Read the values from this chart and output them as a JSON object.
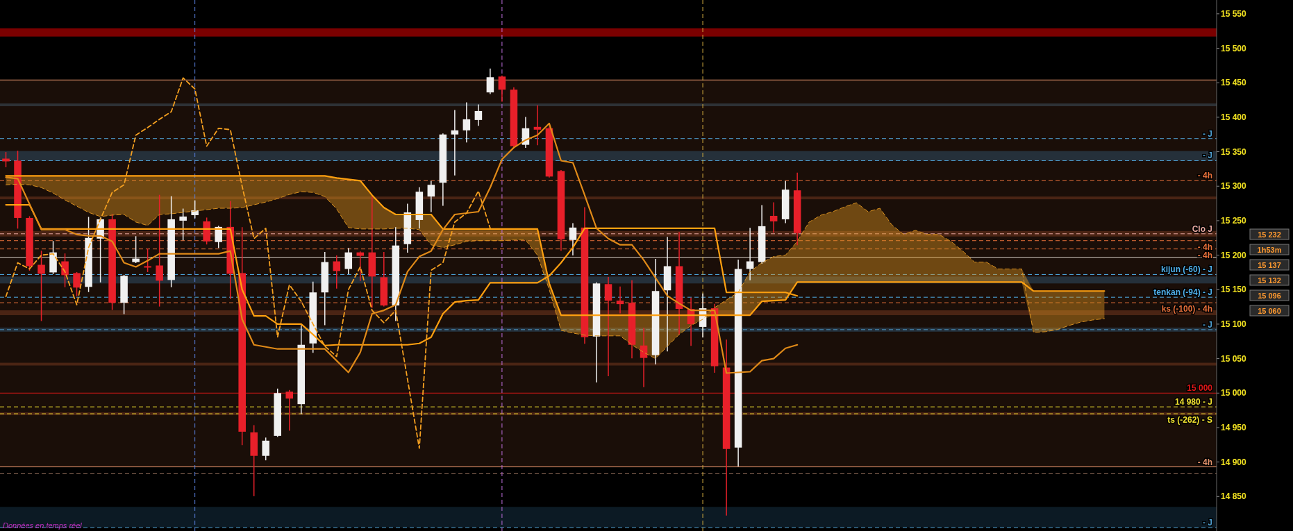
{
  "chart_data": {
    "type": "candlestick",
    "categories": [
      null,
      null,
      null,
      null,
      null,
      null,
      null,
      null,
      null,
      null,
      null,
      null,
      null,
      null,
      null,
      null,
      null,
      null,
      null,
      null,
      null,
      null,
      null,
      null,
      null,
      null,
      null,
      null,
      null,
      null,
      null,
      null,
      null,
      null,
      null,
      null,
      null,
      null,
      null,
      null,
      null,
      null,
      null,
      null,
      null,
      null,
      null,
      null,
      null,
      null,
      null,
      null,
      null,
      null,
      null,
      null,
      null,
      null,
      null,
      null,
      null,
      null,
      null,
      null,
      null,
      null,
      null,
      null,
      null,
      null,
      null,
      null,
      null,
      null,
      null,
      null,
      null,
      null,
      null,
      null,
      null,
      null,
      null,
      null,
      null,
      null,
      null,
      null,
      null,
      null,
      null,
      null,
      null,
      null,
      null,
      null,
      null,
      null,
      null,
      null,
      null,
      null,
      null
    ],
    "ylim": [
      14800,
      15570
    ],
    "yticks": [
      {
        "value": 14850,
        "label": "14 850"
      },
      {
        "value": 14900,
        "label": "14 900"
      },
      {
        "value": 14950,
        "label": "14 950"
      },
      {
        "value": 15000,
        "label": "15 000"
      },
      {
        "value": 15050,
        "label": "15 050"
      },
      {
        "value": 15100,
        "label": "15 100"
      },
      {
        "value": 15150,
        "label": "15 150"
      },
      {
        "value": 15200,
        "label": "15 200"
      },
      {
        "value": 15250,
        "label": "15 250"
      },
      {
        "value": 15300,
        "label": "15 300"
      },
      {
        "value": 15350,
        "label": "15 350"
      },
      {
        "value": 15400,
        "label": "15 400"
      },
      {
        "value": 15450,
        "label": "15 450"
      },
      {
        "value": 15500,
        "label": "15 500"
      },
      {
        "value": 15550,
        "label": "15 550"
      }
    ],
    "tick_labels": "y",
    "series": [
      {
        "ohlc": [
          [
            15340,
            15349,
            15328,
            15336
          ],
          [
            15337,
            15351,
            15239,
            15254
          ],
          [
            15254,
            15256,
            15178,
            15184
          ],
          [
            15186,
            15206,
            15105,
            15173
          ],
          [
            15175,
            15220,
            15173,
            15204
          ],
          [
            15191,
            15202,
            15154,
            15171
          ],
          [
            15174,
            15175,
            15141,
            15153
          ],
          [
            15154,
            15255,
            15147,
            15225
          ],
          [
            15224,
            15254,
            15161,
            15252
          ],
          [
            15252,
            15259,
            15121,
            15131
          ],
          [
            15131,
            15171,
            15115,
            15170
          ],
          [
            15190,
            15227,
            15189,
            15195
          ],
          [
            15184,
            15209,
            15176,
            15182
          ],
          [
            15185,
            15287,
            15126,
            15163
          ],
          [
            15164,
            15285,
            15154,
            15252
          ],
          [
            15250,
            15267,
            15222,
            15256
          ],
          [
            15258,
            15279,
            15254,
            15265
          ],
          [
            15249,
            15254,
            15216,
            15220
          ],
          [
            15219,
            15242,
            15211,
            15241
          ],
          [
            15241,
            15278,
            15137,
            15173
          ],
          [
            15174,
            15240,
            14925,
            14944
          ],
          [
            14943,
            14953,
            14851,
            14909
          ],
          [
            14909,
            14935,
            14903,
            14931
          ],
          [
            14938,
            15006,
            14937,
            15000
          ],
          [
            15002,
            15004,
            14946,
            14992
          ],
          [
            14984,
            15098,
            14970,
            15070
          ],
          [
            15072,
            15161,
            15059,
            15146
          ],
          [
            15146,
            15204,
            15099,
            15190
          ],
          [
            15191,
            15199,
            15152,
            15177
          ],
          [
            15180,
            15210,
            15173,
            15204
          ],
          [
            15204,
            15205,
            15163,
            15199
          ],
          [
            15204,
            15285,
            15124,
            15169
          ],
          [
            15168,
            15204,
            15126,
            15127
          ],
          [
            15127,
            15240,
            15105,
            15214
          ],
          [
            15216,
            15274,
            15204,
            15262
          ],
          [
            15251,
            15298,
            15239,
            15292
          ],
          [
            15285,
            15307,
            15263,
            15302
          ],
          [
            15305,
            15376,
            15272,
            15375
          ],
          [
            15375,
            15410,
            15316,
            15381
          ],
          [
            15381,
            15421,
            15364,
            15397
          ],
          [
            15396,
            15418,
            15388,
            15409
          ],
          [
            15436,
            15470,
            15434,
            15458
          ],
          [
            15459,
            15460,
            15423,
            15440
          ],
          [
            15440,
            15443,
            15357,
            15358
          ],
          [
            15360,
            15400,
            15356,
            15384
          ],
          [
            15386,
            15417,
            15360,
            15382
          ],
          [
            15384,
            15386,
            15313,
            15314
          ],
          [
            15322,
            15323,
            15207,
            15223
          ],
          [
            15222,
            15246,
            15200,
            15240
          ],
          [
            15240,
            15269,
            15072,
            15081
          ],
          [
            15082,
            15160,
            15016,
            15159
          ],
          [
            15158,
            15168,
            15025,
            15134
          ],
          [
            15134,
            15154,
            15116,
            15129
          ],
          [
            15131,
            15163,
            15051,
            15070
          ],
          [
            15069,
            15094,
            15009,
            15051
          ],
          [
            15055,
            15194,
            15042,
            15148
          ],
          [
            15149,
            15226,
            15061,
            15184
          ],
          [
            15184,
            15233,
            15085,
            15122
          ],
          [
            15122,
            15138,
            15069,
            15100
          ],
          [
            15096,
            15144,
            15081,
            15123
          ],
          [
            15123,
            15129,
            15030,
            15039
          ],
          [
            15037,
            15077,
            14823,
            14919
          ],
          [
            14921,
            15193,
            14894,
            15180
          ],
          [
            15180,
            15239,
            15164,
            15191
          ],
          [
            15190,
            15272,
            15188,
            15242
          ],
          [
            15257,
            15276,
            15233,
            15249
          ],
          [
            15252,
            15307,
            15247,
            15295
          ],
          [
            15294,
            15319,
            15215,
            15232
          ],
          null,
          null,
          null,
          null,
          null,
          null,
          null,
          null,
          null,
          null,
          null,
          null,
          null,
          null,
          null,
          null,
          null,
          null,
          null,
          null,
          null,
          null,
          null,
          null,
          null,
          null,
          null,
          null,
          null,
          null,
          null,
          null,
          null,
          null,
          null
        ],
        "colors": [
          "#e8202a",
          "#e8202a",
          "#e8202a",
          "#e8202a",
          "#f0f0f0",
          "#e8202a",
          "#e8202a",
          "#f0f0f0",
          "#f0f0f0",
          "#e8202a",
          "#f0f0f0",
          "#f0f0f0",
          "#e8202a",
          "#e8202a",
          "#f0f0f0",
          "#f0f0f0",
          "#f0f0f0",
          "#e8202a",
          "#f0f0f0",
          "#e8202a",
          "#e8202a",
          "#e8202a",
          "#f0f0f0",
          "#f0f0f0",
          "#e8202a",
          "#f0f0f0",
          "#f0f0f0",
          "#f0f0f0",
          "#e8202a",
          "#f0f0f0",
          "#e8202a",
          "#e8202a",
          "#e8202a",
          "#f0f0f0",
          "#f0f0f0",
          "#f0f0f0",
          "#f0f0f0",
          "#f0f0f0",
          "#f0f0f0",
          "#f0f0f0",
          "#f0f0f0",
          "#f0f0f0",
          "#e8202a",
          "#e8202a",
          "#f0f0f0",
          "#e8202a",
          "#e8202a",
          "#e8202a",
          "#f0f0f0",
          "#e8202a",
          "#f0f0f0",
          "#e8202a",
          "#e8202a",
          "#e8202a",
          "#e8202a",
          "#f0f0f0",
          "#f0f0f0",
          "#e8202a",
          "#e8202a",
          "#f0f0f0",
          "#e8202a",
          "#e8202a",
          "#f0f0f0",
          "#f0f0f0",
          "#f0f0f0",
          "#e8202a",
          "#f0f0f0",
          "#e8202a",
          null,
          null,
          null,
          null,
          null,
          null,
          null,
          null,
          null,
          null,
          null,
          null,
          null,
          null,
          null,
          null,
          null,
          null,
          null,
          null,
          null,
          null,
          null,
          null,
          null,
          null,
          null,
          null,
          null,
          null,
          null,
          null,
          null,
          null,
          null
        ]
      },
      {
        "type": "line",
        "color": "#d89020",
        "line_style": "dashed",
        "values": [
          15302,
          15303,
          15302,
          15298,
          15290,
          15280,
          15271,
          15262,
          15256,
          15258,
          15259,
          15248,
          15243,
          15259,
          15260,
          15262,
          15264,
          15266,
          15268,
          15268,
          15269,
          15273,
          15277,
          15282,
          15288,
          15292,
          15291,
          15285,
          15267,
          15240,
          15238,
          15238,
          15238,
          15239,
          15239,
          15237,
          15215,
          15211,
          15215,
          15220,
          15221,
          15221,
          15221,
          15222,
          15222,
          15200,
          15150,
          15091,
          15087,
          15084,
          15083,
          15083,
          15083,
          15070,
          15059,
          15050,
          15068,
          15085,
          15098,
          15107,
          15124,
          15135,
          15146,
          15176,
          15189,
          15198,
          15200,
          15220,
          15248,
          15258,
          15263,
          15270,
          15276,
          15263,
          15268,
          15244,
          15230,
          15236,
          15230,
          15230,
          15220,
          15206,
          15190,
          15190,
          15180,
          15180,
          15180,
          15088,
          15089,
          15092,
          15098,
          15103,
          15106,
          15108,
          null,
          null,
          null,
          null,
          null,
          null,
          null,
          null,
          null
        ],
        "lower": [
          15302,
          15303,
          15302,
          15298,
          15290,
          15280,
          15271,
          15262,
          15256,
          15258,
          15259,
          15248,
          15243,
          15259,
          15260,
          15262,
          15264,
          15266,
          15268,
          15268,
          15269,
          15273,
          15277,
          15282,
          15288,
          15292,
          15291,
          15285,
          15267,
          15240,
          15238,
          15238,
          15238,
          15239,
          15239,
          15237,
          15215,
          15211,
          15215,
          15220,
          15221,
          15221,
          15221,
          15222,
          15222,
          15200,
          15150,
          15091,
          15087,
          15084,
          15083,
          15083,
          15083,
          15070,
          15059,
          15050,
          15068,
          15085,
          15098,
          15107,
          15113,
          15113,
          15113,
          15113,
          15133,
          15134,
          15135,
          15161,
          15161,
          15161,
          15161,
          15161,
          15161,
          15161,
          15161,
          15161,
          15161,
          15161,
          15161,
          15161,
          15161,
          15161,
          15161,
          15161,
          15161,
          15161,
          15161,
          15088,
          15089,
          15092,
          15098,
          15103,
          15106,
          15108,
          null,
          null,
          null,
          null,
          null,
          null,
          null,
          null,
          null
        ],
        "upper": [
          15315,
          15315,
          15315,
          15315,
          15315,
          15315,
          15315,
          15315,
          15315,
          15315,
          15315,
          15315,
          15315,
          15315,
          15315,
          15315,
          15315,
          15315,
          15315,
          15315,
          15315,
          15315,
          15315,
          15315,
          15315,
          15315,
          15315,
          15315,
          15312,
          15310,
          15308,
          15287,
          15269,
          15259,
          15259,
          15259,
          15259,
          15238,
          15238,
          15238,
          15238,
          15238,
          15238,
          15238,
          15238,
          15238,
          15159,
          15113,
          15113,
          15113,
          15113,
          15113,
          15113,
          15113,
          15113,
          15113,
          15113,
          15113,
          15113,
          15113,
          15124,
          15135,
          15146,
          15176,
          15189,
          15198,
          15200,
          15220,
          15248,
          15258,
          15263,
          15270,
          15276,
          15263,
          15268,
          15244,
          15230,
          15236,
          15230,
          15230,
          15220,
          15206,
          15190,
          15190,
          15180,
          15180,
          15180,
          15148,
          15148,
          15148,
          15148,
          15148,
          15148,
          15148,
          null,
          null,
          null,
          null,
          null,
          null,
          null,
          null,
          null
        ]
      },
      {
        "type": "line",
        "color": "#ffa010",
        "values": [
          15315,
          15315,
          15315,
          15315,
          15315,
          15315,
          15315,
          15315,
          15315,
          15315,
          15315,
          15315,
          15315,
          15315,
          15315,
          15315,
          15315,
          15315,
          15315,
          15315,
          15315,
          15315,
          15315,
          15315,
          15315,
          15315,
          15315,
          15315,
          15312,
          15310,
          15308,
          15287,
          15269,
          15259,
          15259,
          15259,
          15259,
          15238,
          15238,
          15238,
          15238,
          15238,
          15238,
          15238,
          15238,
          15238,
          15159,
          15113,
          15113,
          15113,
          15113,
          15113,
          15113,
          15113,
          15113,
          15113,
          15113,
          15113,
          15113,
          15113,
          15113,
          15113,
          15113,
          15113,
          15133,
          15134,
          15135,
          15161,
          15161,
          15161,
          15161,
          15161,
          15161,
          15161,
          15161,
          15161,
          15161,
          15161,
          15161,
          15161,
          15161,
          15161,
          15161,
          15161,
          15161,
          15161,
          15161,
          15148,
          15148,
          15148,
          15148,
          15148,
          15148,
          15148,
          null,
          null,
          null,
          null,
          null,
          null,
          null,
          null,
          null
        ]
      },
      {
        "type": "line",
        "color": "#ffa010",
        "values": [
          15273,
          15273,
          15273,
          15238,
          15238,
          15238,
          15238,
          15238,
          15238,
          15238,
          15238,
          15238,
          15238,
          15238,
          15238,
          15238,
          15238,
          15238,
          15238,
          15238,
          15150,
          15112,
          15112,
          15100,
          15100,
          15100,
          15085,
          15069,
          15070,
          15070,
          15070,
          15070,
          15070,
          15070,
          15070,
          15072,
          15081,
          15115,
          15132,
          15134,
          15135,
          15160,
          15160,
          15160,
          15160,
          15160,
          15170,
          15189,
          15211,
          15239,
          15239,
          15239,
          15239,
          15239,
          15239,
          15239,
          15239,
          15239,
          15239,
          15239,
          15239,
          15146,
          15146,
          15146,
          15146,
          15146,
          15146,
          15141,
          null,
          null,
          null,
          null,
          null,
          null,
          null,
          null,
          null,
          null,
          null,
          null,
          null,
          null,
          null,
          null,
          null,
          null,
          null,
          null,
          null,
          null,
          null,
          null,
          null,
          null,
          null,
          null,
          null,
          null,
          null,
          null,
          null,
          null,
          null
        ]
      },
      {
        "type": "line",
        "color": "#e08a18",
        "values": [
          15313,
          15311,
          15274,
          15237,
          15237,
          15237,
          15230,
          15228,
          15228,
          15220,
          15189,
          15183,
          15192,
          15202,
          15202,
          15202,
          15202,
          15202,
          15202,
          15206,
          15107,
          15070,
          15067,
          15064,
          15064,
          15064,
          15064,
          15064,
          15047,
          15030,
          15059,
          15115,
          15120,
          15128,
          15176,
          15198,
          15206,
          15237,
          15259,
          15261,
          15263,
          15298,
          15339,
          15356,
          15367,
          15374,
          15391,
          15337,
          15334,
          15287,
          15239,
          15224,
          15215,
          15215,
          15193,
          15167,
          15141,
          15130,
          15120,
          15120,
          15120,
          15029,
          15030,
          15031,
          15047,
          15050,
          15065,
          15070,
          null,
          null,
          null,
          null,
          null,
          null,
          null,
          null,
          null,
          null,
          null,
          null,
          null,
          null,
          null,
          null,
          null,
          null,
          null,
          null,
          null,
          null,
          null,
          null,
          null,
          null,
          null,
          null,
          null,
          null,
          null,
          null,
          null,
          null,
          null
        ]
      },
      {
        "type": "line",
        "color": "#f5a020",
        "line_style": "dashed",
        "values": [
          15140,
          15189,
          15180,
          15200,
          15202,
          15176,
          15128,
          15211,
          15252,
          15291,
          15302,
          15374,
          15385,
          15397,
          15408,
          15457,
          15441,
          15358,
          15384,
          15382,
          15300,
          15224,
          15239,
          15081,
          15157,
          15133,
          15100,
          15068,
          15053,
          15150,
          15183,
          15120,
          15102,
          15120,
          15020,
          14920,
          15178,
          15189,
          15248,
          15261,
          15293,
          15239,
          null,
          null,
          null,
          null,
          null,
          null,
          null,
          null,
          null,
          null,
          null,
          null,
          null,
          null,
          null,
          null,
          null,
          null,
          null,
          null,
          null,
          null,
          null,
          null,
          null,
          null,
          null,
          null,
          null,
          null,
          null,
          null,
          null,
          null,
          null,
          null,
          null,
          null,
          null,
          null,
          null,
          null,
          null,
          null,
          null,
          null,
          null,
          null,
          null,
          null,
          null,
          null,
          null,
          null,
          null,
          null,
          null,
          null,
          null,
          null,
          null
        ]
      }
    ],
    "bands": [
      {
        "axis": "y",
        "from": 14893,
        "to": 15454,
        "color": "#1a0e08"
      },
      {
        "axis": "y",
        "from": 15517,
        "to": 15529,
        "color": "#7a0000"
      },
      {
        "axis": "y",
        "from": 15416,
        "to": 15420,
        "color": "#2e3236"
      },
      {
        "axis": "y",
        "from": 15337,
        "to": 15351,
        "color": "#25303a"
      },
      {
        "axis": "y",
        "from": 15281,
        "to": 15285,
        "color": "#4a2414"
      },
      {
        "axis": "y",
        "from": 15227,
        "to": 15235,
        "color": "#4a2414"
      },
      {
        "axis": "y",
        "from": 15159,
        "to": 15169,
        "color": "#25303a"
      },
      {
        "axis": "y",
        "from": 15113,
        "to": 15120,
        "color": "#4a2414"
      },
      {
        "axis": "y",
        "from": 15089,
        "to": 15095,
        "color": "#25303a"
      },
      {
        "axis": "y",
        "from": 15040,
        "to": 15044,
        "color": "#4a2414"
      },
      {
        "axis": "y",
        "from": 14968,
        "to": 14972,
        "color": "#4a2414"
      },
      {
        "axis": "y",
        "from": 14805,
        "to": 14835,
        "color": "#0c1a24"
      }
    ],
    "ref_lines": [
      {
        "axis": "y",
        "value": 15454,
        "color": "#e0906a",
        "line_style": "solid"
      },
      {
        "axis": "y",
        "value": 15369,
        "label": "- J",
        "color": "#4f9fd0",
        "line_style": "dashed"
      },
      {
        "axis": "y",
        "value": 15337,
        "label": "- J",
        "color": "#4f9fd0",
        "line_style": "dashed"
      },
      {
        "axis": "y",
        "value": 15308,
        "label": "- 4h",
        "color": "#e8703a",
        "line_style": "dashed"
      },
      {
        "axis": "y",
        "value": 15231,
        "label": "Clo J",
        "color": "#e8a8a0",
        "line_style": "dashed"
      },
      {
        "axis": "y",
        "value": 15221,
        "label": "- 4h",
        "color": "#e8703a",
        "line_style": "dashed"
      },
      {
        "axis": "y",
        "value": 15209,
        "label": "- 4h",
        "color": "#e8703a",
        "line_style": "dashed"
      },
      {
        "axis": "y",
        "value": 15197,
        "color": "#d8d0c8",
        "line_style": "solid"
      },
      {
        "axis": "y",
        "value": 15172,
        "label": "kijun (-60) - J",
        "color": "#4faee8",
        "line_style": "dashed"
      },
      {
        "axis": "y",
        "value": 15139,
        "label": "tenkan (-94) - J",
        "color": "#4faee8",
        "line_style": "dashed"
      },
      {
        "axis": "y",
        "value": 15131,
        "label": "ks (-100) - 4h",
        "color": "#e8703a",
        "line_style": "dashed"
      },
      {
        "axis": "y",
        "value": 15092,
        "label": "- J",
        "color": "#4f9fd0",
        "line_style": "dashed"
      },
      {
        "axis": "y",
        "value": 15000,
        "label": "15 000",
        "color": "#e01818",
        "line_style": "solid"
      },
      {
        "axis": "y",
        "value": 14980,
        "label": "14 980 - J",
        "color": "#f0e030",
        "line_style": "dashed"
      },
      {
        "axis": "y",
        "value": 14970,
        "label": "ts (-262) - S",
        "color": "#f0e030",
        "line_style": "dashed"
      },
      {
        "axis": "y",
        "value": 14893,
        "label": "- 4h",
        "color": "#e0906a",
        "line_style": "solid"
      },
      {
        "axis": "y",
        "value": 14883,
        "color": "#806050",
        "line_style": "dashed"
      },
      {
        "axis": "y",
        "value": 14805,
        "label": "- J",
        "color": "#4f9fd0",
        "line_style": "dashed"
      }
    ],
    "annotations": [
      "Données en temps réel",
      "15 232",
      "1h53m",
      "15 137",
      "15 132",
      "15 096",
      "15 060"
    ]
  }
}
